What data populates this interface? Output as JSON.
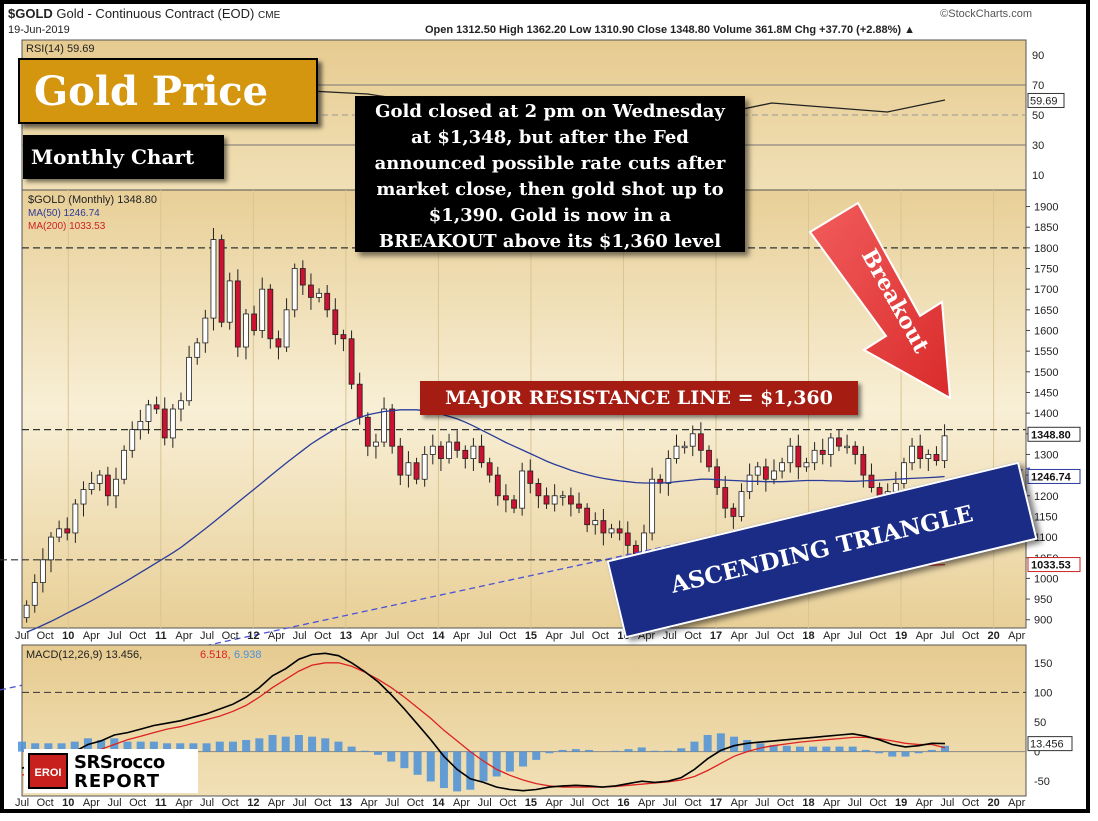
{
  "header": {
    "symbol": "$GOLD",
    "name": "Gold - Continuous Contract (EOD)",
    "exchange": "CME",
    "date": "19-Jun-2019",
    "brand": "©StockCharts.com",
    "ohlc_text": "Open 1312.50  High 1362.20  Low 1310.90  Close 1348.80  Volume 361.8M  Chg +37.70 (+2.88%) ▲"
  },
  "callouts": {
    "title": "Gold Price",
    "subtitle": "Monthly Chart",
    "note_lines": [
      "Gold closed at 2 pm on Wednesday",
      "at $1,348, but after the Fed",
      "announced possible rate cuts after",
      "market close, then gold shot up to",
      "$1,390.  Gold is now in a",
      "BREAKOUT above its $1,360 level"
    ],
    "resistance": "MAJOR RESISTANCE LINE = $1,360",
    "triangle": "ASCENDING TRIANGLE",
    "arrow": "Breakout"
  },
  "logo": {
    "badge": "EROI",
    "line1": "SRSrocco",
    "line2": "REPORT"
  },
  "colors": {
    "panel_top": "#ecd7a6",
    "panel_mid": "#f7ecd0",
    "candle_up": "#ffffff",
    "candle_down": "#cc1133",
    "ma50": "#2a3b9a",
    "ma200": "#cc2222",
    "macd": "#000000",
    "signal": "#dd2222",
    "histogram": "#4a90d9"
  },
  "chart_data": [
    {
      "type": "line",
      "title": "RSI(14) 59.69",
      "series": [
        {
          "name": "RSI(14)",
          "values": [
            66,
            64,
            58,
            54,
            44,
            40,
            42,
            50,
            58,
            55,
            52,
            60
          ]
        }
      ],
      "y_ticks": [
        "10",
        "30",
        "50",
        "70",
        "90"
      ],
      "last_value_label": "59.69",
      "ylim": [
        0,
        100
      ],
      "guides": [
        30,
        50,
        70
      ]
    },
    {
      "type": "candlestick",
      "title": "$GOLD (Monthly) 1348.80",
      "legend": [
        "$GOLD (Monthly) 1348.80",
        "MA(50) 1246.74",
        "MA(200) 1033.53"
      ],
      "x_tick_labels": [
        "Jul",
        "Oct",
        "10",
        "Apr",
        "Jul",
        "Oct",
        "11",
        "Apr",
        "Jul",
        "Oct",
        "12",
        "Apr",
        "Jul",
        "Oct",
        "13",
        "Apr",
        "Jul",
        "Oct",
        "14",
        "Apr",
        "Jul",
        "Oct",
        "15",
        "Apr",
        "Jul",
        "Oct",
        "16",
        "Apr",
        "Jul",
        "Oct",
        "17",
        "Apr",
        "Jul",
        "Oct",
        "18",
        "Apr",
        "Jul",
        "Oct",
        "19",
        "Apr",
        "Jul",
        "Oct",
        "20",
        "Apr"
      ],
      "y_ticks": [
        "900",
        "950",
        "1000",
        "1050",
        "1100",
        "1150",
        "1200",
        "1250",
        "1300",
        "1350",
        "1400",
        "1450",
        "1500",
        "1550",
        "1600",
        "1650",
        "1700",
        "1750",
        "1800",
        "1850",
        "1900"
      ],
      "ylim": [
        880,
        1940
      ],
      "x_range": [
        2009.5,
        2020.35
      ],
      "levels": [
        1360,
        1800,
        1045
      ],
      "last_price_label": "1348.80",
      "ma50_label": "1246.74",
      "ma200_label": "1033.53",
      "closes": [
        935,
        990,
        1045,
        1100,
        1120,
        1110,
        1180,
        1215,
        1230,
        1250,
        1200,
        1240,
        1310,
        1360,
        1380,
        1420,
        1410,
        1340,
        1410,
        1430,
        1535,
        1570,
        1630,
        1820,
        1620,
        1720,
        1560,
        1640,
        1600,
        1700,
        1580,
        1560,
        1650,
        1750,
        1710,
        1680,
        1690,
        1650,
        1590,
        1580,
        1470,
        1390,
        1320,
        1330,
        1410,
        1320,
        1250,
        1280,
        1240,
        1300,
        1320,
        1290,
        1330,
        1310,
        1290,
        1320,
        1280,
        1250,
        1200,
        1190,
        1170,
        1260,
        1230,
        1200,
        1180,
        1200,
        1200,
        1180,
        1170,
        1130,
        1140,
        1110,
        1120,
        1110,
        1080,
        1060,
        1110,
        1240,
        1230,
        1290,
        1320,
        1320,
        1350,
        1310,
        1270,
        1220,
        1170,
        1150,
        1210,
        1250,
        1270,
        1240,
        1260,
        1280,
        1320,
        1270,
        1280,
        1310,
        1300,
        1340,
        1320,
        1320,
        1300,
        1250,
        1220,
        1200,
        1210,
        1230,
        1280,
        1320,
        1290,
        1300,
        1285,
        1345
      ],
      "ma50": [
        870,
        878,
        887,
        896,
        906,
        916,
        926,
        936,
        946,
        957,
        968,
        979,
        990,
        1002,
        1014,
        1026,
        1038,
        1050,
        1062,
        1075,
        1090,
        1105,
        1120,
        1136,
        1152,
        1168,
        1184,
        1200,
        1216,
        1232,
        1248,
        1264,
        1280,
        1295,
        1310,
        1325,
        1338,
        1350,
        1362,
        1372,
        1381,
        1389,
        1396,
        1400,
        1404,
        1406,
        1408,
        1408,
        1408,
        1406,
        1403,
        1398,
        1392,
        1386,
        1378,
        1369,
        1359,
        1349,
        1339,
        1329,
        1320,
        1311,
        1302,
        1293,
        1284,
        1276,
        1269,
        1262,
        1256,
        1251,
        1246,
        1242,
        1239,
        1236,
        1234,
        1232,
        1231,
        1231,
        1231,
        1232,
        1234,
        1236,
        1238,
        1240,
        1240,
        1239,
        1238,
        1237,
        1236,
        1235,
        1235,
        1234,
        1234,
        1234,
        1235,
        1236,
        1237,
        1237,
        1237,
        1236,
        1236,
        1235,
        1235,
        1236,
        1237,
        1238,
        1239,
        1240,
        1241,
        1242,
        1243,
        1244,
        1245,
        1246.74
      ],
      "ma200": [
        1010,
        1018,
        1026,
        1033.53
      ]
    },
    {
      "type": "line",
      "title": "MACD(12,26,9) 13.456, 6.518, 6.938",
      "legend": [
        "MACD(12,26,9)",
        "13.456",
        "6.518",
        "6.938"
      ],
      "series": [
        {
          "name": "MACD(12,26,9)",
          "values": [
            -28,
            -22,
            -16,
            -10,
            0,
            12,
            18,
            28,
            32,
            38,
            44,
            48,
            52,
            58,
            64,
            72,
            80,
            92,
            108,
            128,
            140,
            156,
            164,
            166,
            162,
            150,
            135,
            118,
            96,
            72,
            46,
            20,
            -8,
            -30,
            -46,
            -52,
            -60,
            -64,
            -66,
            -64,
            -60,
            -58,
            -57,
            -58,
            -60,
            -58,
            -54,
            -50,
            -52,
            -50,
            -44,
            -30,
            -12,
            2,
            10,
            14,
            16,
            18,
            20,
            22,
            24,
            26,
            28,
            30,
            26,
            20,
            12,
            8,
            10,
            14,
            13.456
          ]
        },
        {
          "name": "signal",
          "values": [
            -40,
            -32,
            -26,
            -20,
            -12,
            -4,
            4,
            12,
            20,
            26,
            32,
            38,
            42,
            48,
            54,
            60,
            68,
            78,
            92,
            108,
            122,
            136,
            146,
            150,
            150,
            144,
            134,
            122,
            108,
            92,
            74,
            56,
            36,
            18,
            0,
            -16,
            -30,
            -40,
            -48,
            -54,
            -58,
            -60,
            -60,
            -60,
            -60,
            -59,
            -57,
            -55,
            -53,
            -51,
            -48,
            -42,
            -32,
            -20,
            -8,
            0,
            6,
            10,
            13,
            16,
            18,
            20,
            22,
            24,
            24,
            22,
            18,
            14,
            12,
            12,
            6.518
          ]
        }
      ],
      "histogram_values": [
        6.938
      ],
      "y_ticks": [
        "-50",
        "0",
        "50",
        "100",
        "150"
      ],
      "last_value_label": "13.456",
      "ylim": [
        -75,
        180
      ],
      "guides": [
        0,
        100
      ]
    }
  ]
}
